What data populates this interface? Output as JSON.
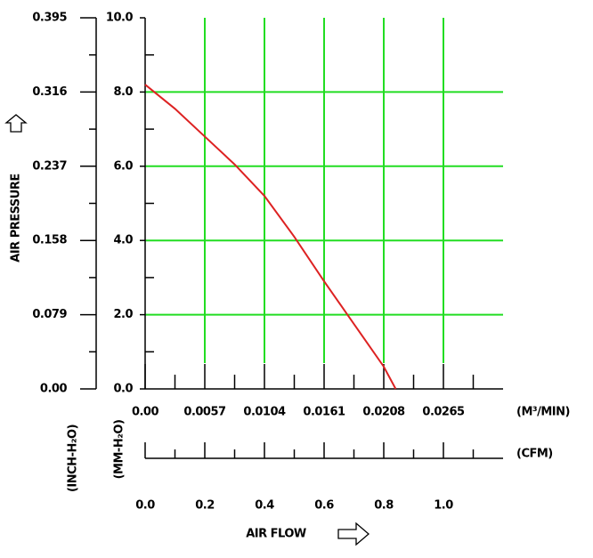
{
  "chart_data": {
    "type": "line",
    "y_label": "AIR PRESSURE",
    "y_unit": "(MM-H₂O)",
    "y2_unit": "(INCH-H₂O)",
    "x_label": "AIR FLOW",
    "x_unit": "(CFM)",
    "x2_unit": "(M³/MIN)",
    "xlim": [
      0,
      1.2
    ],
    "xticks": [
      {
        "value": 0,
        "label": "0.0"
      },
      0.2,
      0.4,
      0.6,
      0.8,
      {
        "value": 1,
        "label": "1.0"
      }
    ],
    "x2ticks": [
      {
        "value": 0,
        "label": "0.00"
      },
      {
        "value": 0.2,
        "label": "0.0057"
      },
      {
        "value": 0.4,
        "label": "0.0104"
      },
      {
        "value": 0.6,
        "label": "0.0161"
      },
      {
        "value": 0.8,
        "label": "0.0208"
      },
      {
        "value": 1,
        "label": "0.0265"
      }
    ],
    "ylim": [
      0,
      10
    ],
    "yticks": [
      {
        "value": 0,
        "label": "0.0"
      },
      {
        "value": 2,
        "label": "2.0"
      },
      {
        "value": 4,
        "label": "4.0"
      },
      {
        "value": 6,
        "label": "6.0"
      },
      {
        "value": 8,
        "label": "8.0"
      },
      {
        "value": 10,
        "label": "10.0"
      }
    ],
    "y2lim": [
      0,
      0.395
    ],
    "y2ticks": [
      {
        "value": 0,
        "label": "0.00"
      },
      0.079,
      0.158,
      0.237,
      0.316,
      0.395
    ],
    "grid": true,
    "grid_color": "#22dd22",
    "x": [
      0,
      0.1,
      0.2,
      0.3,
      0.4,
      0.5,
      0.6,
      0.7,
      0.8,
      0.84
    ],
    "series": [
      {
        "color": "#dd2222",
        "values": [
          8.2,
          7.55,
          6.8,
          6.05,
          5.2,
          4.1,
          2.9,
          1.75,
          0.6,
          0
        ]
      }
    ]
  }
}
